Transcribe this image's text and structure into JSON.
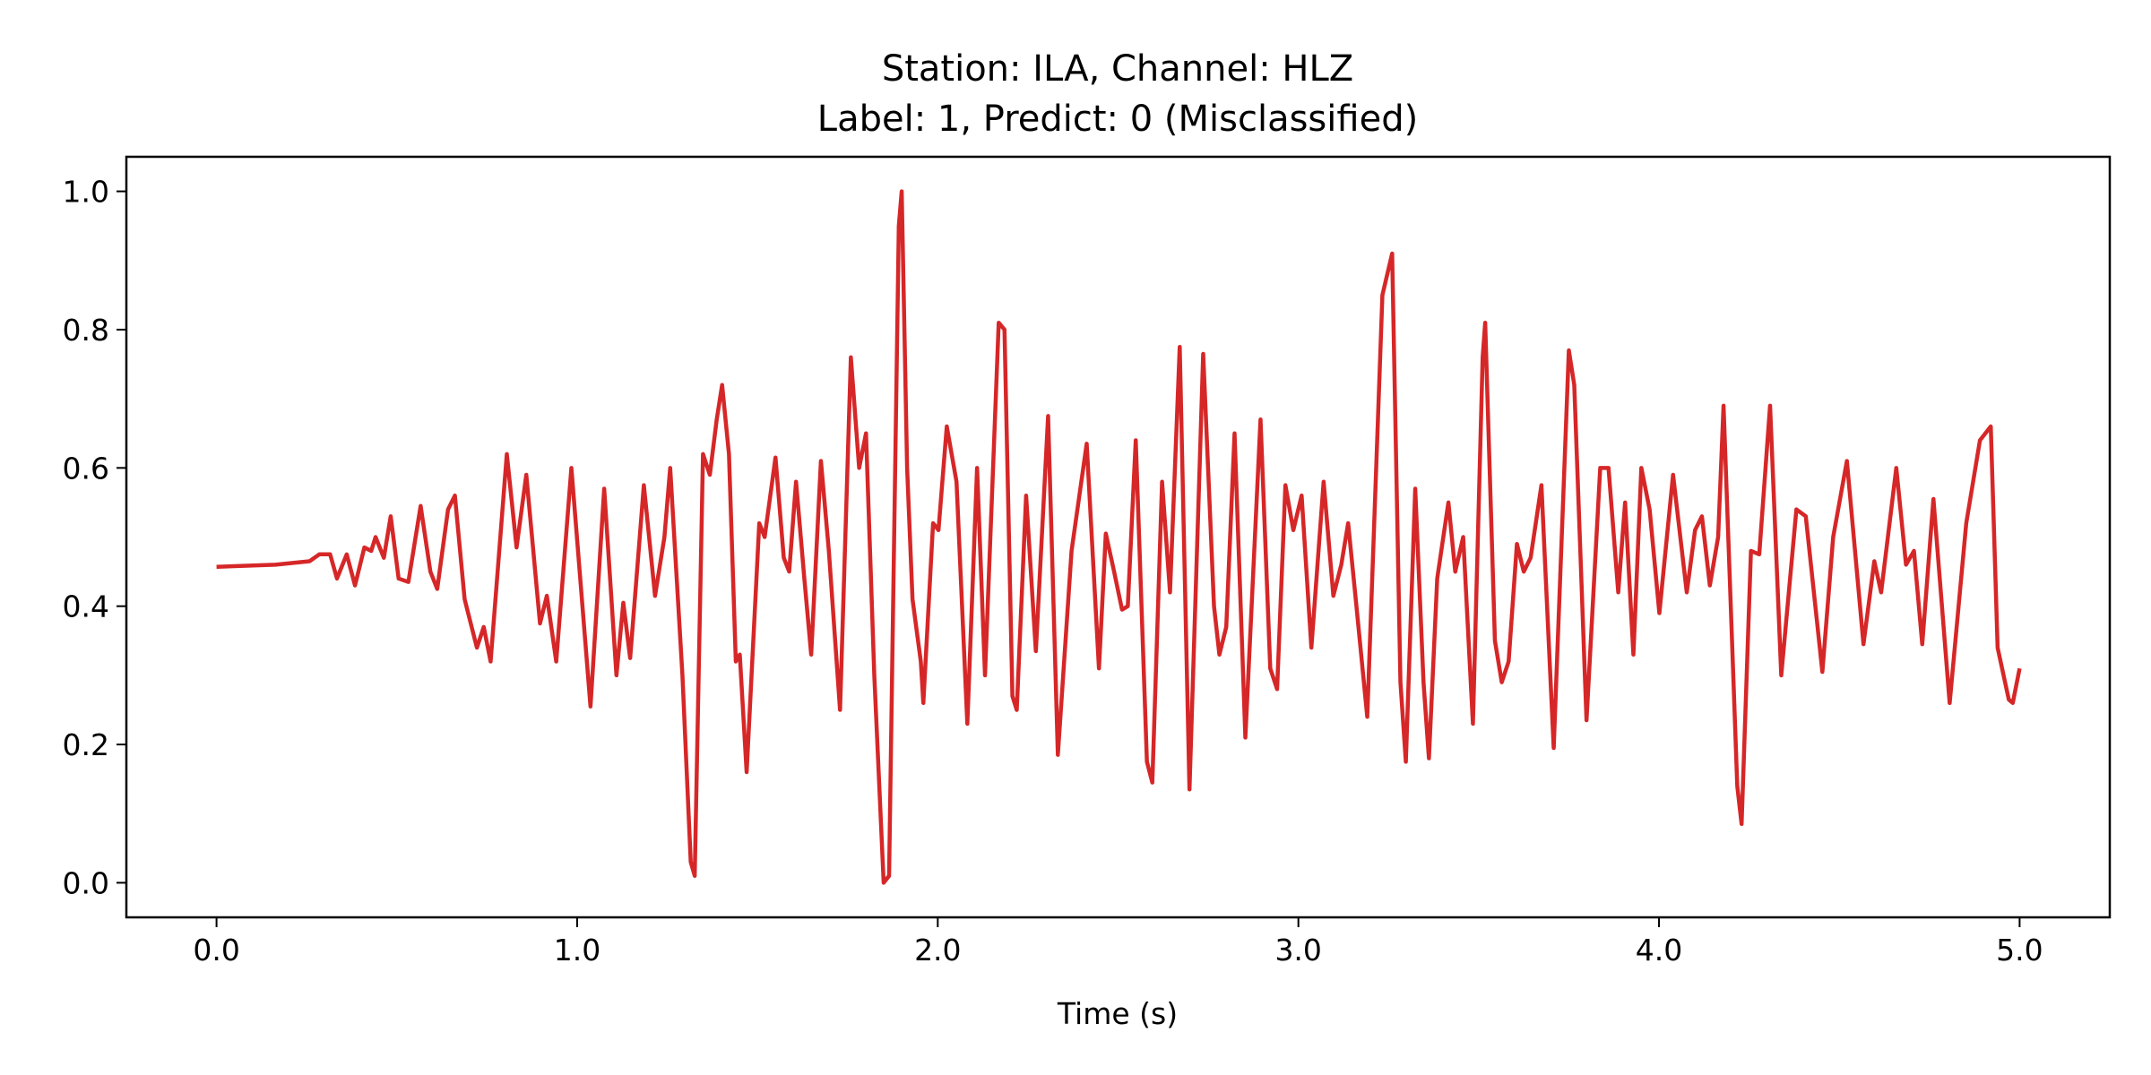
{
  "chart_data": {
    "type": "line",
    "title": "Station: ILA, Channel: HLZ",
    "subtitle": "Label: 1, Predict: 0 (Misclassified)",
    "x_label": "Time (s)",
    "xlim": [
      -0.25,
      5.25
    ],
    "ylim": [
      -0.05,
      1.05
    ],
    "xticks": [
      {
        "value": 0,
        "label": "0.0"
      },
      {
        "value": 1,
        "label": "1.0"
      },
      {
        "value": 2,
        "label": "2.0"
      },
      {
        "value": 3,
        "label": "3.0"
      },
      {
        "value": 4,
        "label": "4.0"
      },
      {
        "value": 5,
        "label": "5.0"
      }
    ],
    "yticks": [
      {
        "value": 0,
        "label": "0.0"
      },
      0.2,
      0.4,
      0.6,
      0.8,
      {
        "value": 1,
        "label": "1.0"
      }
    ],
    "grid": false,
    "series": [
      {
        "color": "#d62728",
        "x": [
          0,
          0.163,
          0.258,
          0.285,
          0.315,
          0.334,
          0.361,
          0.384,
          0.41,
          0.429,
          0.441,
          0.464,
          0.483,
          0.505,
          0.532,
          0.566,
          0.593,
          0.612,
          0.642,
          0.661,
          0.688,
          0.722,
          0.741,
          0.76,
          0.805,
          0.832,
          0.859,
          0.897,
          0.916,
          0.942,
          0.984,
          1.037,
          1.075,
          1.109,
          1.128,
          1.147,
          1.185,
          1.216,
          1.242,
          1.258,
          1.292,
          1.315,
          1.326,
          1.349,
          1.368,
          1.387,
          1.402,
          1.421,
          1.44,
          1.451,
          1.47,
          1.505,
          1.52,
          1.55,
          1.573,
          1.588,
          1.607,
          1.63,
          1.649,
          1.676,
          1.698,
          1.729,
          1.759,
          1.782,
          1.801,
          1.824,
          1.85,
          1.865,
          1.892,
          1.9,
          1.915,
          1.93,
          1.953,
          1.96,
          1.987,
          2.002,
          2.025,
          2.052,
          2.082,
          2.109,
          2.131,
          2.169,
          2.185,
          2.207,
          2.219,
          2.245,
          2.272,
          2.306,
          2.333,
          2.371,
          2.413,
          2.447,
          2.466,
          2.489,
          2.511,
          2.527,
          2.549,
          2.58,
          2.595,
          2.622,
          2.644,
          2.671,
          2.698,
          2.736,
          2.766,
          2.781,
          2.8,
          2.823,
          2.853,
          2.895,
          2.922,
          2.941,
          2.964,
          2.986,
          3.009,
          3.036,
          3.07,
          3.097,
          3.119,
          3.138,
          3.161,
          3.191,
          3.233,
          3.26,
          3.283,
          3.298,
          3.324,
          3.347,
          3.362,
          3.385,
          3.416,
          3.435,
          3.457,
          3.484,
          3.511,
          3.518,
          3.545,
          3.564,
          3.583,
          3.606,
          3.625,
          3.644,
          3.674,
          3.708,
          3.75,
          3.765,
          3.799,
          3.837,
          3.86,
          3.887,
          3.906,
          3.929,
          3.951,
          3.974,
          4.001,
          4.039,
          4.077,
          4.1,
          4.119,
          4.141,
          4.164,
          4.179,
          4.217,
          4.229,
          4.255,
          4.278,
          4.308,
          4.339,
          4.381,
          4.407,
          4.453,
          4.483,
          4.521,
          4.567,
          4.597,
          4.616,
          4.658,
          4.685,
          4.707,
          4.73,
          4.761,
          4.806,
          4.852,
          4.89,
          4.92,
          4.939,
          4.97,
          4.981,
          5.0
        ],
        "values": [
          0.457,
          0.46,
          0.465,
          0.475,
          0.475,
          0.44,
          0.475,
          0.43,
          0.485,
          0.48,
          0.5,
          0.47,
          0.53,
          0.44,
          0.435,
          0.545,
          0.45,
          0.425,
          0.54,
          0.56,
          0.41,
          0.34,
          0.37,
          0.32,
          0.62,
          0.485,
          0.59,
          0.375,
          0.415,
          0.32,
          0.6,
          0.255,
          0.57,
          0.3,
          0.405,
          0.325,
          0.575,
          0.415,
          0.5,
          0.6,
          0.3,
          0.03,
          0.01,
          0.62,
          0.59,
          0.67,
          0.72,
          0.62,
          0.32,
          0.33,
          0.16,
          0.52,
          0.5,
          0.615,
          0.47,
          0.45,
          0.58,
          0.44,
          0.33,
          0.61,
          0.48,
          0.25,
          0.76,
          0.6,
          0.65,
          0.3,
          0.0,
          0.01,
          0.95,
          1.0,
          0.6,
          0.41,
          0.32,
          0.26,
          0.52,
          0.51,
          0.66,
          0.58,
          0.23,
          0.6,
          0.3,
          0.81,
          0.8,
          0.27,
          0.25,
          0.56,
          0.335,
          0.675,
          0.185,
          0.48,
          0.635,
          0.31,
          0.505,
          0.45,
          0.395,
          0.4,
          0.64,
          0.175,
          0.145,
          0.58,
          0.42,
          0.775,
          0.135,
          0.765,
          0.4,
          0.33,
          0.37,
          0.65,
          0.21,
          0.67,
          0.31,
          0.28,
          0.575,
          0.51,
          0.56,
          0.34,
          0.58,
          0.415,
          0.46,
          0.52,
          0.4,
          0.24,
          0.85,
          0.91,
          0.29,
          0.175,
          0.57,
          0.29,
          0.18,
          0.44,
          0.55,
          0.45,
          0.5,
          0.23,
          0.76,
          0.81,
          0.35,
          0.29,
          0.32,
          0.49,
          0.45,
          0.47,
          0.575,
          0.195,
          0.77,
          0.72,
          0.235,
          0.6,
          0.6,
          0.42,
          0.55,
          0.33,
          0.6,
          0.54,
          0.39,
          0.59,
          0.42,
          0.51,
          0.53,
          0.43,
          0.5,
          0.69,
          0.14,
          0.085,
          0.48,
          0.475,
          0.69,
          0.3,
          0.54,
          0.53,
          0.305,
          0.5,
          0.61,
          0.345,
          0.465,
          0.42,
          0.6,
          0.46,
          0.48,
          0.345,
          0.555,
          0.26,
          0.52,
          0.64,
          0.66,
          0.34,
          0.265,
          0.26,
          0.31
        ]
      }
    ]
  }
}
